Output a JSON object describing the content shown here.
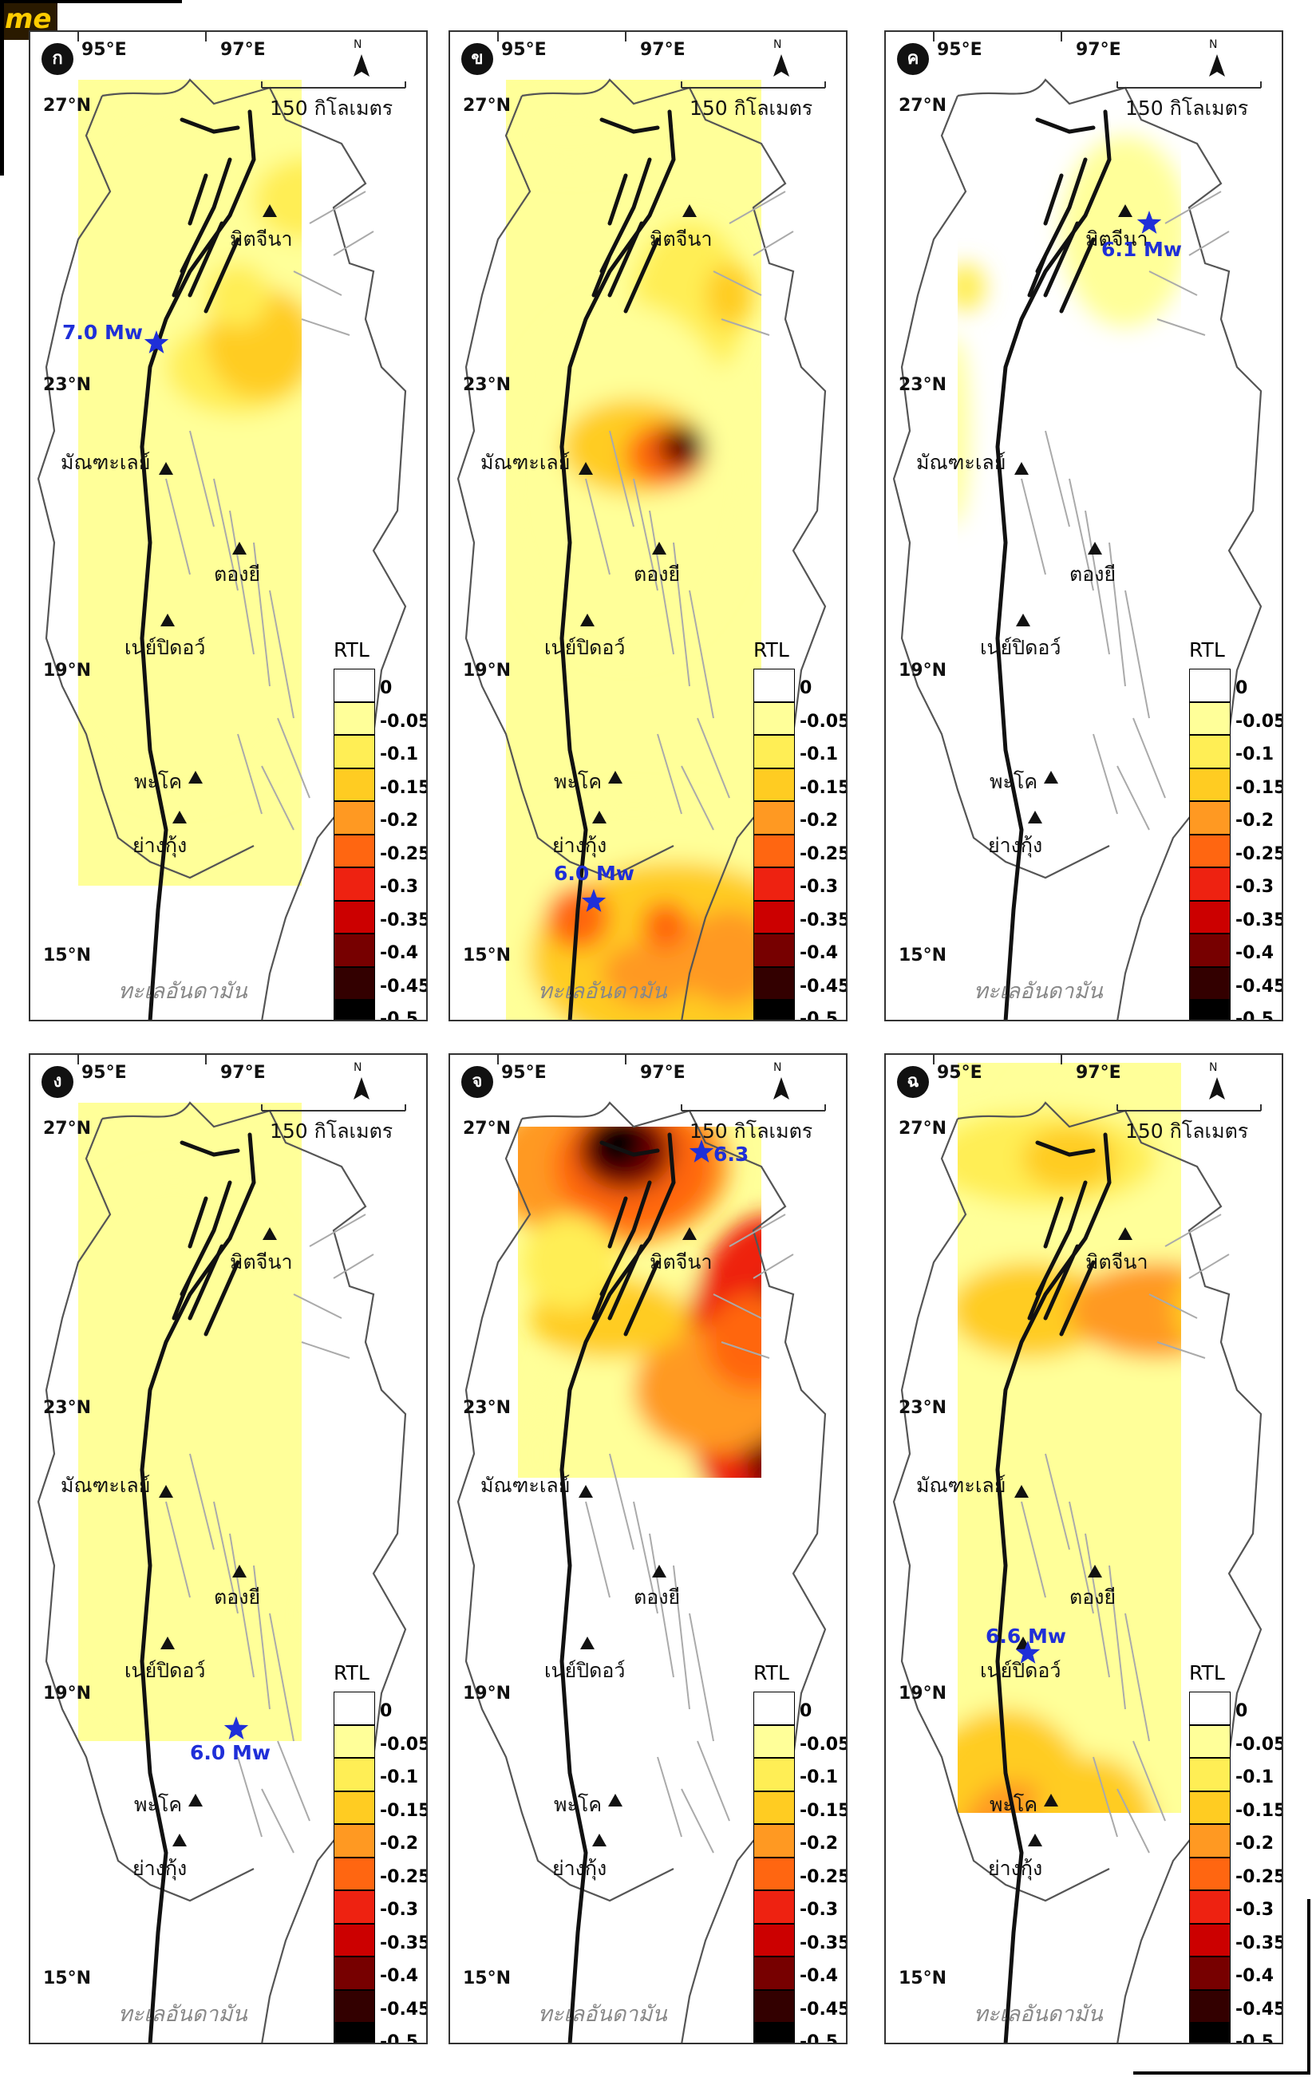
{
  "watermark": {
    "text": "me",
    "colors": {
      "bg": "#2a1a00",
      "fg": "#ffcc00"
    }
  },
  "legend": {
    "title": "RTL",
    "labels": [
      "0",
      "-0.05",
      "-0.1",
      "-0.15",
      "-0.2",
      "-0.25",
      "-0.3",
      "-0.35",
      "-0.4",
      "-0.45",
      "-0.5"
    ],
    "colors": [
      "#ffffff",
      "#ffff99",
      "#ffee55",
      "#ffcc22",
      "#ff9922",
      "#ff6611",
      "#ee2211",
      "#cc0000",
      "#770000",
      "#330000",
      "#000000"
    ]
  },
  "axes": {
    "lon_labels": [
      "95°E",
      "97°E"
    ],
    "lat_labels": [
      "27°N",
      "23°N",
      "19°N",
      "15°N"
    ]
  },
  "scale_bar": {
    "label": "150 กิโลเมตร",
    "north": "N"
  },
  "cities": {
    "myitkyina": "มิตจีนา",
    "mandalay": "มัณฑะเลย์",
    "taunggyi": "ตองยี",
    "naypyidaw": "เนย์ปิดอว์",
    "bago": "พะโค",
    "yangon": "ย่างกุ้ง"
  },
  "sea_label": "ทะเลอันดามัน",
  "panels": [
    {
      "id": "a",
      "badge": "ก",
      "quake": "7.0 Mw"
    },
    {
      "id": "b",
      "badge": "ข",
      "quake": "6.0 Mw"
    },
    {
      "id": "c",
      "badge": "ค",
      "quake": "6.1 Mw"
    },
    {
      "id": "d",
      "badge": "ง",
      "quake": "6.0 Mw"
    },
    {
      "id": "e",
      "badge": "จ",
      "quake": "6.3"
    },
    {
      "id": "f",
      "badge": "ฉ",
      "quake": "6.6 Mw"
    }
  ],
  "colors": {
    "quake_star": "#1f2fd8",
    "fault": "#111111",
    "minor_fault": "#aaaaaa",
    "coast": "#555555"
  }
}
